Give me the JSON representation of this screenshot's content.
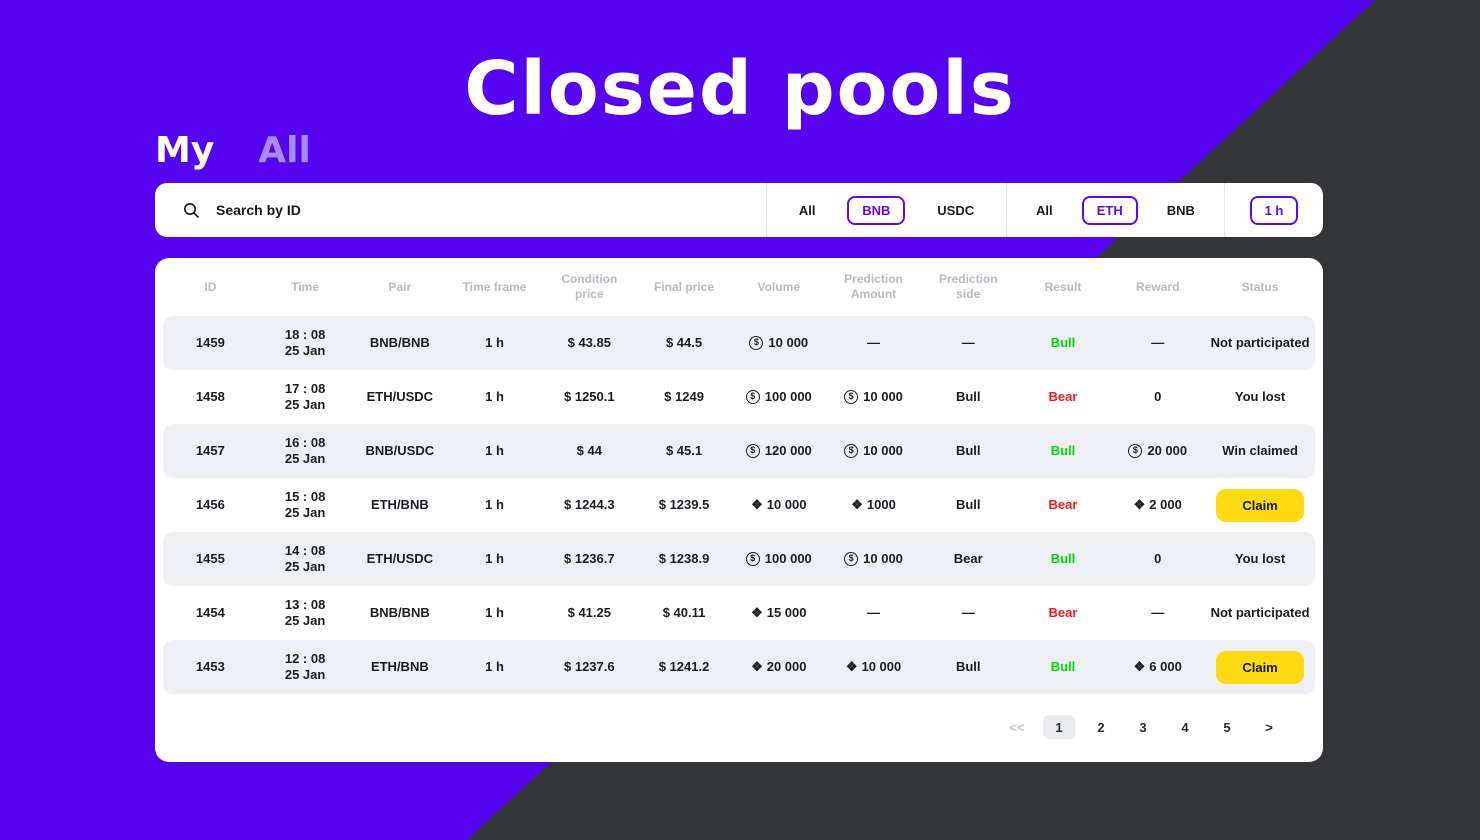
{
  "title": "Closed pools",
  "tabs": {
    "my": "My",
    "all": "All",
    "active": "My"
  },
  "filters": {
    "search": {
      "placeholder": "Search by ID"
    },
    "pair_group": {
      "options": [
        "All",
        "BNB",
        "USDC"
      ],
      "selected": "BNB"
    },
    "asset_group": {
      "options": [
        "All",
        "ETH",
        "BNB"
      ],
      "selected": "ETH"
    },
    "timeframe_group": {
      "options": [
        "1 h"
      ],
      "selected": "1 h"
    }
  },
  "icons": {
    "usd": "$",
    "bnb": "❖"
  },
  "table": {
    "columns": [
      "ID",
      "Time",
      "Pair",
      "Time frame",
      "Condition price",
      "Final price",
      "Volume",
      "Prediction Amount",
      "Prediction side",
      "Result",
      "Reward",
      "Status"
    ],
    "rows": [
      {
        "id": "1459",
        "time": "18 : 08",
        "date": "25 Jan",
        "pair": "BNB/BNB",
        "time_frame": "1 h",
        "condition_price": "$ 43.85",
        "final_price": "$ 44.5",
        "volume": {
          "icon": "usd",
          "value": "10 000"
        },
        "prediction_amount": {
          "icon": "",
          "value": "—"
        },
        "prediction_side": "—",
        "result": {
          "text": "Bull",
          "color": "green"
        },
        "reward": {
          "icon": "",
          "value": "—"
        },
        "status": {
          "type": "text",
          "label": "Not participated"
        }
      },
      {
        "id": "1458",
        "time": "17 : 08",
        "date": "25 Jan",
        "pair": "ETH/USDC",
        "time_frame": "1 h",
        "condition_price": "$ 1250.1",
        "final_price": "$ 1249",
        "volume": {
          "icon": "usd",
          "value": "100 000"
        },
        "prediction_amount": {
          "icon": "usd",
          "value": "10 000"
        },
        "prediction_side": "Bull",
        "result": {
          "text": "Bear",
          "color": "red"
        },
        "reward": {
          "icon": "",
          "value": "0"
        },
        "status": {
          "type": "text",
          "label": "You lost"
        }
      },
      {
        "id": "1457",
        "time": "16 : 08",
        "date": "25 Jan",
        "pair": "BNB/USDC",
        "time_frame": "1 h",
        "condition_price": "$ 44",
        "final_price": "$ 45.1",
        "volume": {
          "icon": "usd",
          "value": "120 000"
        },
        "prediction_amount": {
          "icon": "usd",
          "value": "10 000"
        },
        "prediction_side": "Bull",
        "result": {
          "text": "Bull",
          "color": "green"
        },
        "reward": {
          "icon": "usd",
          "value": "20 000"
        },
        "status": {
          "type": "text",
          "label": "Win claimed"
        }
      },
      {
        "id": "1456",
        "time": "15 : 08",
        "date": "25 Jan",
        "pair": "ETH/BNB",
        "time_frame": "1 h",
        "condition_price": "$ 1244.3",
        "final_price": "$ 1239.5",
        "volume": {
          "icon": "bnb",
          "value": "10 000"
        },
        "prediction_amount": {
          "icon": "bnb",
          "value": "1000"
        },
        "prediction_side": "Bull",
        "result": {
          "text": "Bear",
          "color": "red"
        },
        "reward": {
          "icon": "bnb",
          "value": "2 000"
        },
        "status": {
          "type": "button",
          "label": "Claim"
        }
      },
      {
        "id": "1455",
        "time": "14 : 08",
        "date": "25 Jan",
        "pair": "ETH/USDC",
        "time_frame": "1 h",
        "condition_price": "$ 1236.7",
        "final_price": "$ 1238.9",
        "volume": {
          "icon": "usd",
          "value": "100 000"
        },
        "prediction_amount": {
          "icon": "usd",
          "value": "10 000"
        },
        "prediction_side": "Bear",
        "result": {
          "text": "Bull",
          "color": "green"
        },
        "reward": {
          "icon": "",
          "value": "0"
        },
        "status": {
          "type": "text",
          "label": "You lost"
        }
      },
      {
        "id": "1454",
        "time": "13 : 08",
        "date": "25 Jan",
        "pair": "BNB/BNB",
        "time_frame": "1 h",
        "condition_price": "$ 41.25",
        "final_price": "$ 40.11",
        "volume": {
          "icon": "bnb",
          "value": "15 000"
        },
        "prediction_amount": {
          "icon": "",
          "value": "—"
        },
        "prediction_side": "—",
        "result": {
          "text": "Bear",
          "color": "red"
        },
        "reward": {
          "icon": "",
          "value": "—"
        },
        "status": {
          "type": "text",
          "label": "Not participated"
        }
      },
      {
        "id": "1453",
        "time": "12 : 08",
        "date": "25 Jan",
        "pair": "ETH/BNB",
        "time_frame": "1 h",
        "condition_price": "$ 1237.6",
        "final_price": "$ 1241.2",
        "volume": {
          "icon": "bnb",
          "value": "20 000"
        },
        "prediction_amount": {
          "icon": "bnb",
          "value": "10 000"
        },
        "prediction_side": "Bull",
        "result": {
          "text": "Bull",
          "color": "green"
        },
        "reward": {
          "icon": "bnb",
          "value": "6 000"
        },
        "status": {
          "type": "button",
          "label": "Claim"
        }
      }
    ]
  },
  "pagination": {
    "prev": "<<",
    "pages": [
      "1",
      "2",
      "3",
      "4",
      "5"
    ],
    "next": ">",
    "active": "1"
  },
  "colors": {
    "background_purple": "#5603f0",
    "background_dark": "#343539",
    "accent_purple": "#6209f0",
    "bull_green": "#04d904",
    "bear_red": "#f51919",
    "claim_yellow": "#ffd912",
    "stripe_gray": "#eef0f5",
    "header_gray": "#b7bac3",
    "tab_inactive": "#a78df2"
  }
}
